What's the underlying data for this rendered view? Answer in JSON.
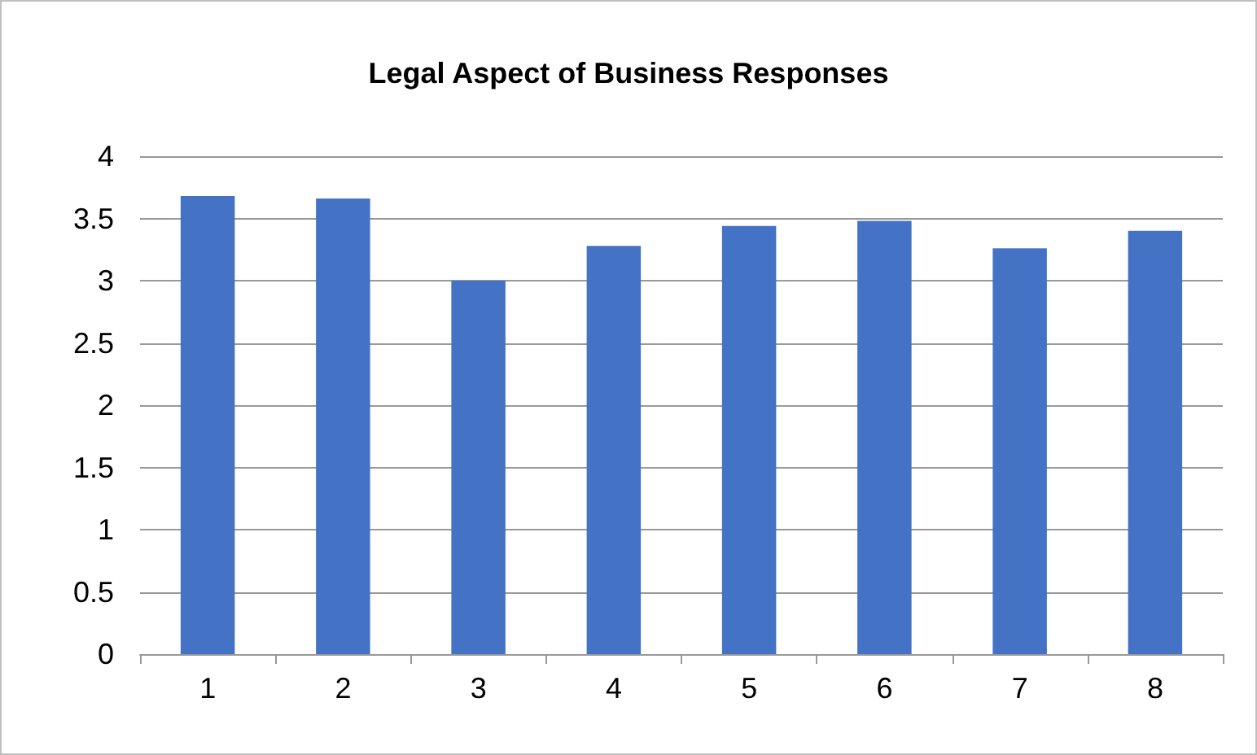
{
  "chart_data": {
    "type": "bar",
    "title": "Legal Aspect of Business Responses",
    "categories": [
      "1",
      "2",
      "3",
      "4",
      "5",
      "6",
      "7",
      "8"
    ],
    "values": [
      3.68,
      3.66,
      3.0,
      3.28,
      3.44,
      3.48,
      3.26,
      3.4
    ],
    "color": "#4472c4",
    "ylim": [
      0,
      4
    ],
    "yticks": [
      0,
      0.5,
      1,
      1.5,
      2,
      2.5,
      3,
      3.5,
      4
    ],
    "grid": "y"
  }
}
